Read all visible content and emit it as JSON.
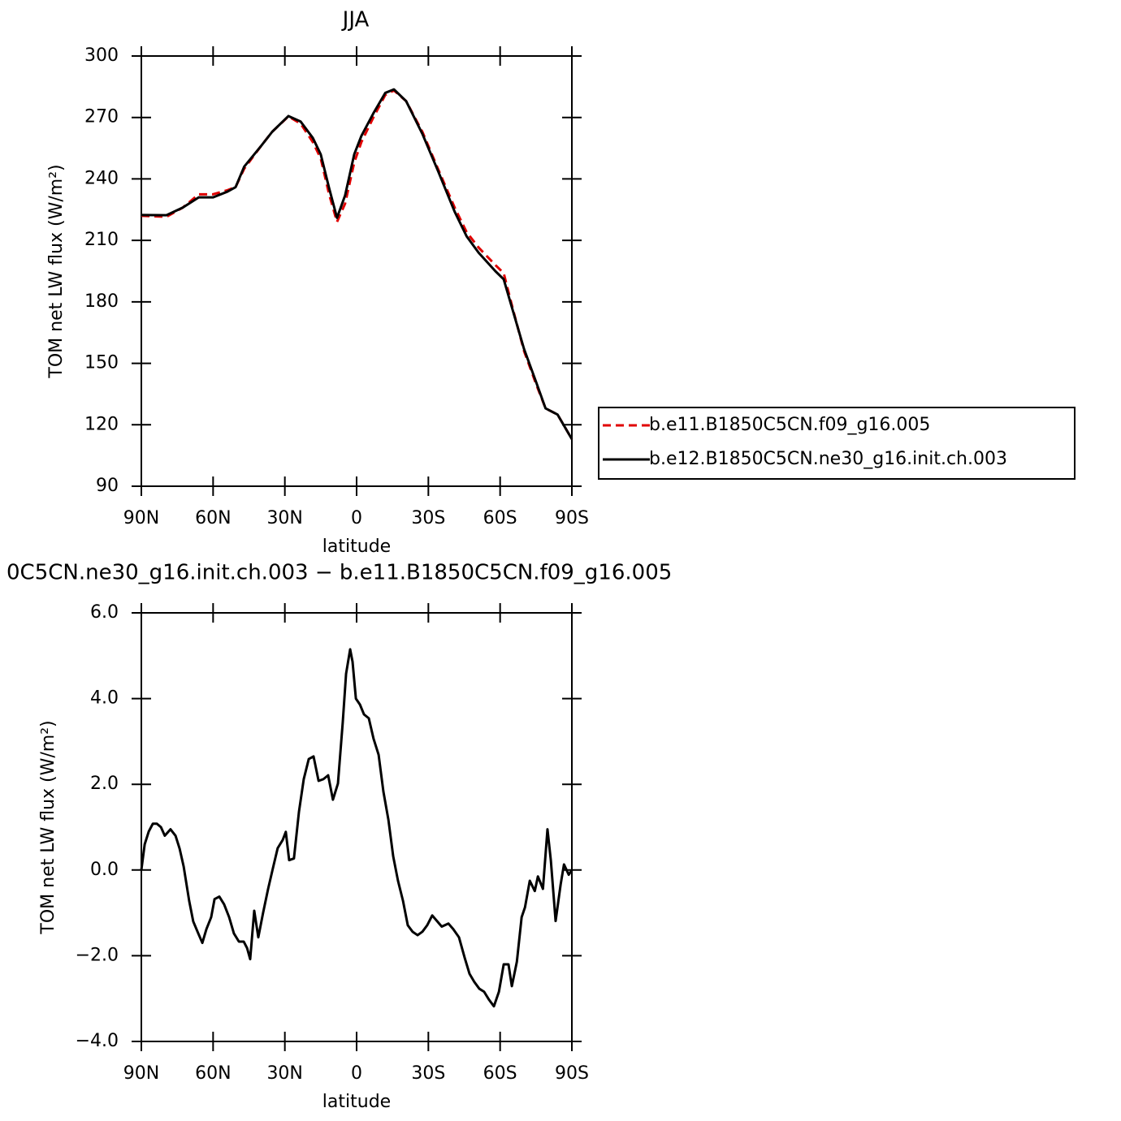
{
  "chart_data": [
    {
      "type": "line",
      "title": "JJA",
      "xlabel": "latitude",
      "ylabel": "TOM net LW flux (W/m²)",
      "xlim": [
        90,
        -90
      ],
      "xticks": [
        {
          "value": 90,
          "label": "90N"
        },
        {
          "value": 60,
          "label": "60N"
        },
        {
          "value": 30,
          "label": "30N"
        },
        0,
        {
          "value": -30,
          "label": "30S"
        },
        {
          "value": -60,
          "label": "60S"
        },
        {
          "value": -90,
          "label": "90S"
        }
      ],
      "ylim": [
        90,
        300
      ],
      "yticks": [
        90,
        120,
        150,
        180,
        210,
        240,
        270,
        300
      ],
      "legend_position": "right",
      "x": [
        90,
        79.5,
        72.7,
        66,
        60,
        54,
        50.6,
        47,
        40,
        35.3,
        28.5,
        23.4,
        18.3,
        15,
        11.6,
        8.2,
        4.8,
        1,
        -2,
        -7,
        -12,
        -15.6,
        -20.7,
        -27.5,
        -34,
        -41,
        -46,
        -51,
        -58,
        -61.5,
        -65,
        -70,
        -75,
        -79,
        -84,
        -90
      ],
      "series": [
        {
          "name": "b.e11.B1850C5CN.f09_g16.005",
          "color": "#e00000",
          "dashed": true,
          "values": [
            222,
            221.5,
            226,
            232.5,
            232.5,
            234.5,
            236,
            245,
            256,
            263,
            270.5,
            267,
            258,
            250,
            233,
            219,
            228,
            248,
            258,
            270,
            281,
            283.2,
            278,
            263,
            245,
            226,
            214,
            206.5,
            198,
            194,
            178,
            156,
            140,
            128,
            125,
            113
          ]
        },
        {
          "name": "b.e12.B1850C5CN.ne30_g16.init.ch.003",
          "color": "#000000",
          "dashed": false,
          "values": [
            222.4,
            222.3,
            226,
            231,
            231,
            233.8,
            236,
            246,
            256,
            263,
            270.7,
            268,
            260,
            252,
            236,
            221,
            232,
            252,
            261,
            272,
            282,
            283.7,
            278,
            262,
            244,
            224,
            212,
            204,
            195,
            191,
            177,
            157,
            141,
            128,
            125,
            113
          ]
        }
      ]
    },
    {
      "type": "line",
      "title": "0C5CN.ne30_g16.init.ch.003 − b.e11.B1850C5CN.f09_g16.005",
      "xlabel": "latitude",
      "ylabel": "TOM net LW flux (W/m²)",
      "xlim": [
        90,
        -90
      ],
      "xticks": [
        {
          "value": 90,
          "label": "90N"
        },
        {
          "value": 60,
          "label": "60N"
        },
        {
          "value": 30,
          "label": "30N"
        },
        0,
        {
          "value": -30,
          "label": "30S"
        },
        {
          "value": -60,
          "label": "60S"
        },
        {
          "value": -90,
          "label": "90S"
        }
      ],
      "ylim": [
        -4,
        6
      ],
      "yticks": [
        {
          "value": -4,
          "label": "−4.0"
        },
        {
          "value": -2,
          "label": "−2.0"
        },
        {
          "value": 0,
          "label": "0.0"
        },
        {
          "value": 2,
          "label": "2.0"
        },
        {
          "value": 4,
          "label": "4.0"
        },
        {
          "value": 6,
          "label": "6.0"
        }
      ],
      "color": "#000000",
      "x": [
        90,
        88.6,
        86.9,
        85.2,
        83.5,
        81.8,
        80.2,
        77.8,
        75.7,
        74,
        72.3,
        70,
        68.3,
        66.2,
        64.5,
        62.8,
        60.8,
        59.4,
        57.4,
        55.4,
        53.3,
        51.3,
        49.2,
        47.2,
        45.8,
        44.5,
        42.8,
        41.1,
        39.1,
        37,
        35,
        33,
        30.9,
        29.6,
        28.2,
        26.2,
        24.1,
        22.1,
        20,
        18,
        15.9,
        13.9,
        11.9,
        9.9,
        7.8,
        5.8,
        4.4,
        2.7,
        1.7,
        0.3,
        -1.4,
        -3.1,
        -5.1,
        -7.1,
        -9.2,
        -11.2,
        -13.3,
        -15.3,
        -17.3,
        -19.4,
        -21.4,
        -23.4,
        -25.5,
        -27.5,
        -29.5,
        -31.6,
        -33.6,
        -35.6,
        -38.4,
        -40.4,
        -42.8,
        -45.2,
        -47.2,
        -49.2,
        -51.3,
        -53.3,
        -55.4,
        -57.4,
        -59.5,
        -61.5,
        -63.5,
        -64.9,
        -67,
        -69,
        -70.4,
        -72.4,
        -74.5,
        -75.8,
        -77.9,
        -79.8,
        -81.2,
        -83.2,
        -85.3,
        -86.7,
        -88.7,
        -90
      ],
      "values": [
        0,
        0.6,
        0.9,
        1.08,
        1.08,
        1,
        0.8,
        0.95,
        0.8,
        0.5,
        0.08,
        -0.72,
        -1.2,
        -1.48,
        -1.7,
        -1.38,
        -1.1,
        -0.68,
        -0.62,
        -0.8,
        -1.1,
        -1.48,
        -1.67,
        -1.67,
        -1.82,
        -2.08,
        -0.95,
        -1.57,
        -1,
        -0.44,
        0.04,
        0.51,
        0.7,
        0.89,
        0.23,
        0.27,
        1.36,
        2.12,
        2.59,
        2.65,
        2.08,
        2.12,
        2.21,
        1.64,
        2.02,
        3.44,
        4.58,
        5.15,
        4.86,
        4,
        3.86,
        3.63,
        3.54,
        3.06,
        2.69,
        1.83,
        1.17,
        0.32,
        -0.25,
        -0.72,
        -1.29,
        -1.44,
        -1.52,
        -1.44,
        -1.29,
        -1.06,
        -1.19,
        -1.32,
        -1.25,
        -1.38,
        -1.57,
        -2.05,
        -2.42,
        -2.61,
        -2.77,
        -2.84,
        -3.03,
        -3.18,
        -2.84,
        -2.2,
        -2.2,
        -2.71,
        -2.14,
        -1.1,
        -0.87,
        -0.25,
        -0.49,
        -0.15,
        -0.44,
        0.95,
        0.23,
        -1.19,
        -0.34,
        0.13,
        -0.11,
        0
      ]
    }
  ]
}
